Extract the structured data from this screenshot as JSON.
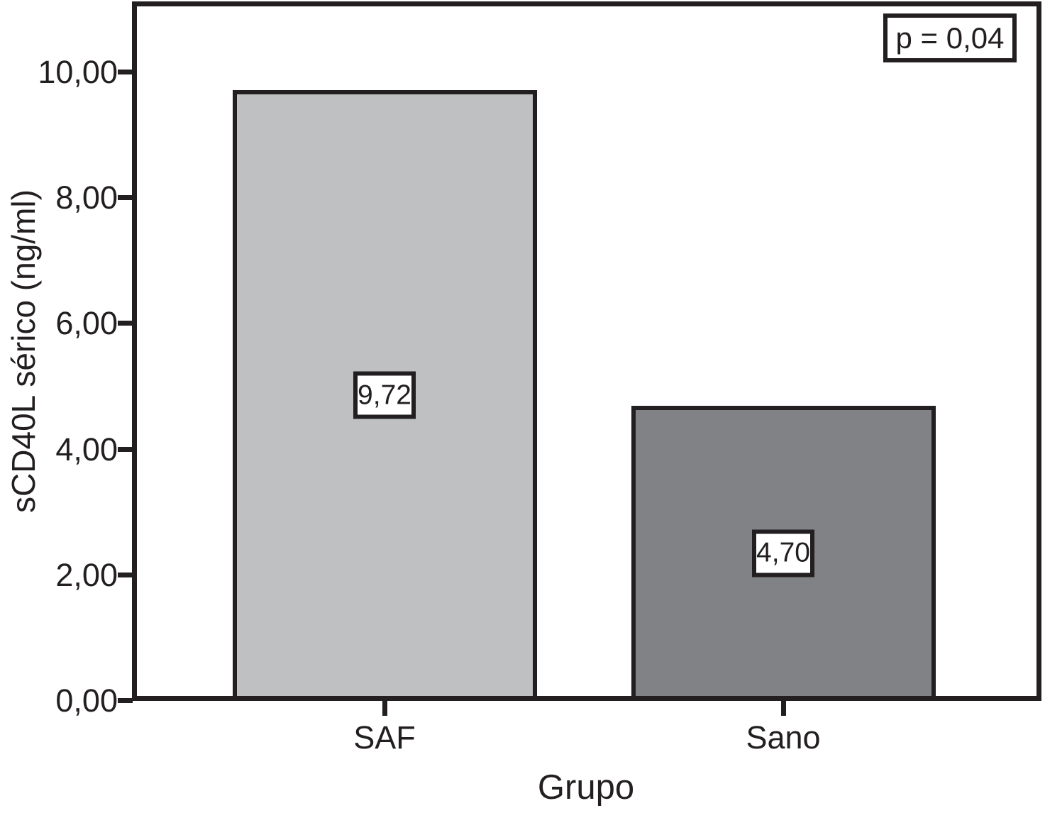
{
  "chart_data": {
    "type": "bar",
    "xlabel": "Grupo",
    "ylabel": "sCD40L sérico (ng/ml)",
    "categories": [
      "SAF",
      "Sano"
    ],
    "values": [
      9.72,
      4.7
    ],
    "value_labels": [
      "9,72",
      "4,70"
    ],
    "bar_colors": [
      "#bec0c2",
      "#808285"
    ],
    "annotation": "p = 0,04",
    "yticks": [
      {
        "value": 0,
        "label": "0,00"
      },
      {
        "value": 2,
        "label": "2,00"
      },
      {
        "value": 4,
        "label": "4,00"
      },
      {
        "value": 6,
        "label": "6,00"
      },
      {
        "value": 8,
        "label": "8,00"
      },
      {
        "value": 10,
        "label": "10,00"
      }
    ],
    "ylim": [
      0,
      11.1
    ],
    "grid": false,
    "legend": false,
    "frame": true
  },
  "colors": {
    "line": "#231f20",
    "background": "#ffffff",
    "label_box_background": "#ffffff"
  }
}
